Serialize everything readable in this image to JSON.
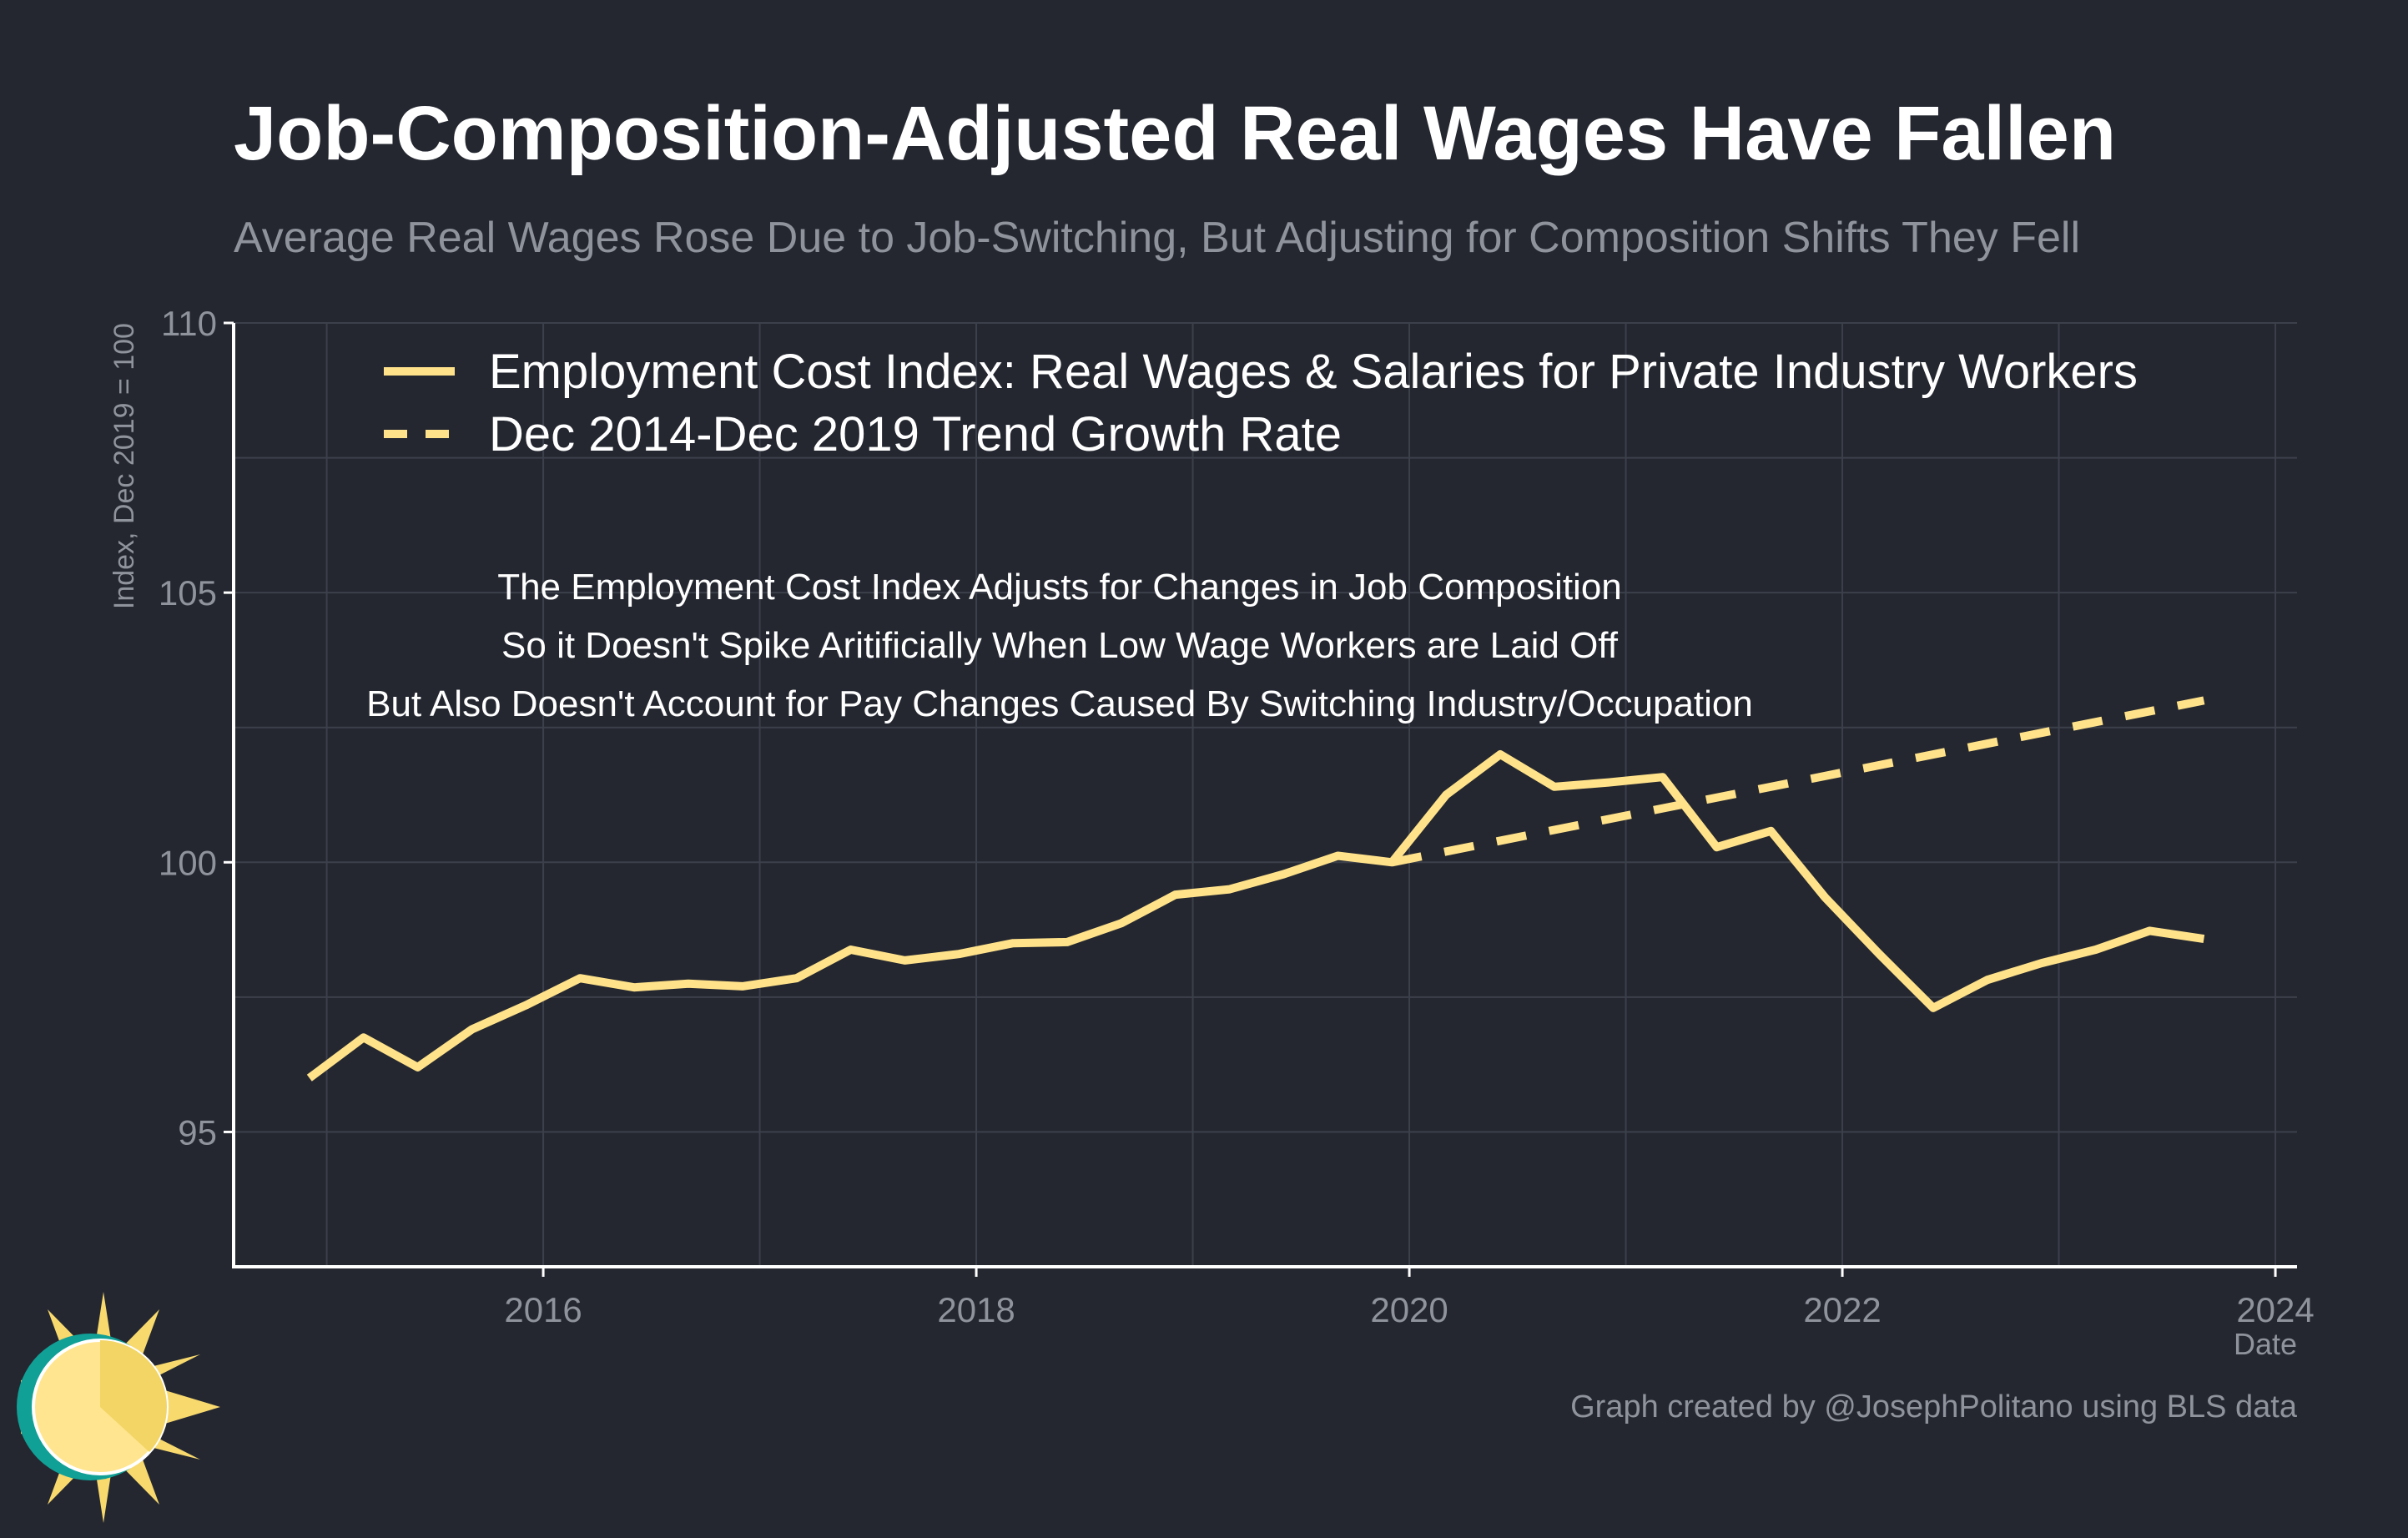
{
  "title": "Job-Composition-Adjusted Real Wages Have Fallen",
  "subtitle": "Average Real Wages Rose Due to Job-Switching, But Adjusting for Composition Shifts They Fell",
  "credit": "Graph created by @JosephPolitano using BLS data",
  "colors": {
    "background": "#242730",
    "series": "#ffe28a",
    "grid": "#3c404a",
    "axis": "#ffffff",
    "tick_text": "#8f939c",
    "logo_sun": "#f7d96e",
    "logo_ring": "#11a096"
  },
  "chart_data": {
    "type": "line",
    "xlabel": "Date",
    "ylabel": "Index, Dec 2019 = 100",
    "xlim": [
      2014.57,
      2024.1
    ],
    "ylim": [
      92.5,
      110
    ],
    "x_ticks": [
      2016,
      2018,
      2020,
      2022,
      2024
    ],
    "x_tick_labels": [
      "2016",
      "2018",
      "2020",
      "2022",
      "2024"
    ],
    "y_ticks": [
      95,
      100,
      105,
      110
    ],
    "y_tick_labels": [
      "95",
      "100",
      "105",
      "110"
    ],
    "grid": true,
    "legend_position": "top-left",
    "series": [
      {
        "name": "Employment Cost Index: Real Wages & Salaries for Private Industry Workers",
        "style": "solid",
        "x": [
          2014.92,
          2015.17,
          2015.42,
          2015.67,
          2015.92,
          2016.17,
          2016.42,
          2016.67,
          2016.92,
          2017.17,
          2017.42,
          2017.67,
          2017.92,
          2018.17,
          2018.42,
          2018.67,
          2018.92,
          2019.17,
          2019.42,
          2019.67,
          2019.92,
          2020.17,
          2020.42,
          2020.67,
          2020.92,
          2021.17,
          2021.42,
          2021.67,
          2021.92,
          2022.17,
          2022.42,
          2022.67,
          2022.92,
          2023.17,
          2023.42,
          2023.67
        ],
        "y": [
          96.0,
          96.75,
          96.2,
          96.9,
          97.35,
          97.85,
          97.68,
          97.75,
          97.7,
          97.85,
          98.38,
          98.18,
          98.3,
          98.5,
          98.52,
          98.87,
          99.4,
          99.5,
          99.78,
          100.12,
          100.0,
          101.25,
          102.0,
          101.4,
          101.48,
          101.58,
          100.28,
          100.58,
          99.35,
          98.3,
          97.3,
          97.82,
          98.13,
          98.38,
          98.73,
          98.58
        ]
      },
      {
        "name": "Dec 2014-Dec 2019 Trend Growth Rate",
        "style": "dashed",
        "x": [
          2019.92,
          2023.67
        ],
        "y": [
          100.0,
          103.0
        ]
      }
    ],
    "annotations": [
      "The Employment Cost Index Adjusts for Changes in Job Composition",
      "So it Doesn't Spike Aritificially When Low Wage Workers are Laid Off",
      "But Also Doesn't Account for Pay Changes Caused By Switching Industry/Occupation"
    ]
  }
}
